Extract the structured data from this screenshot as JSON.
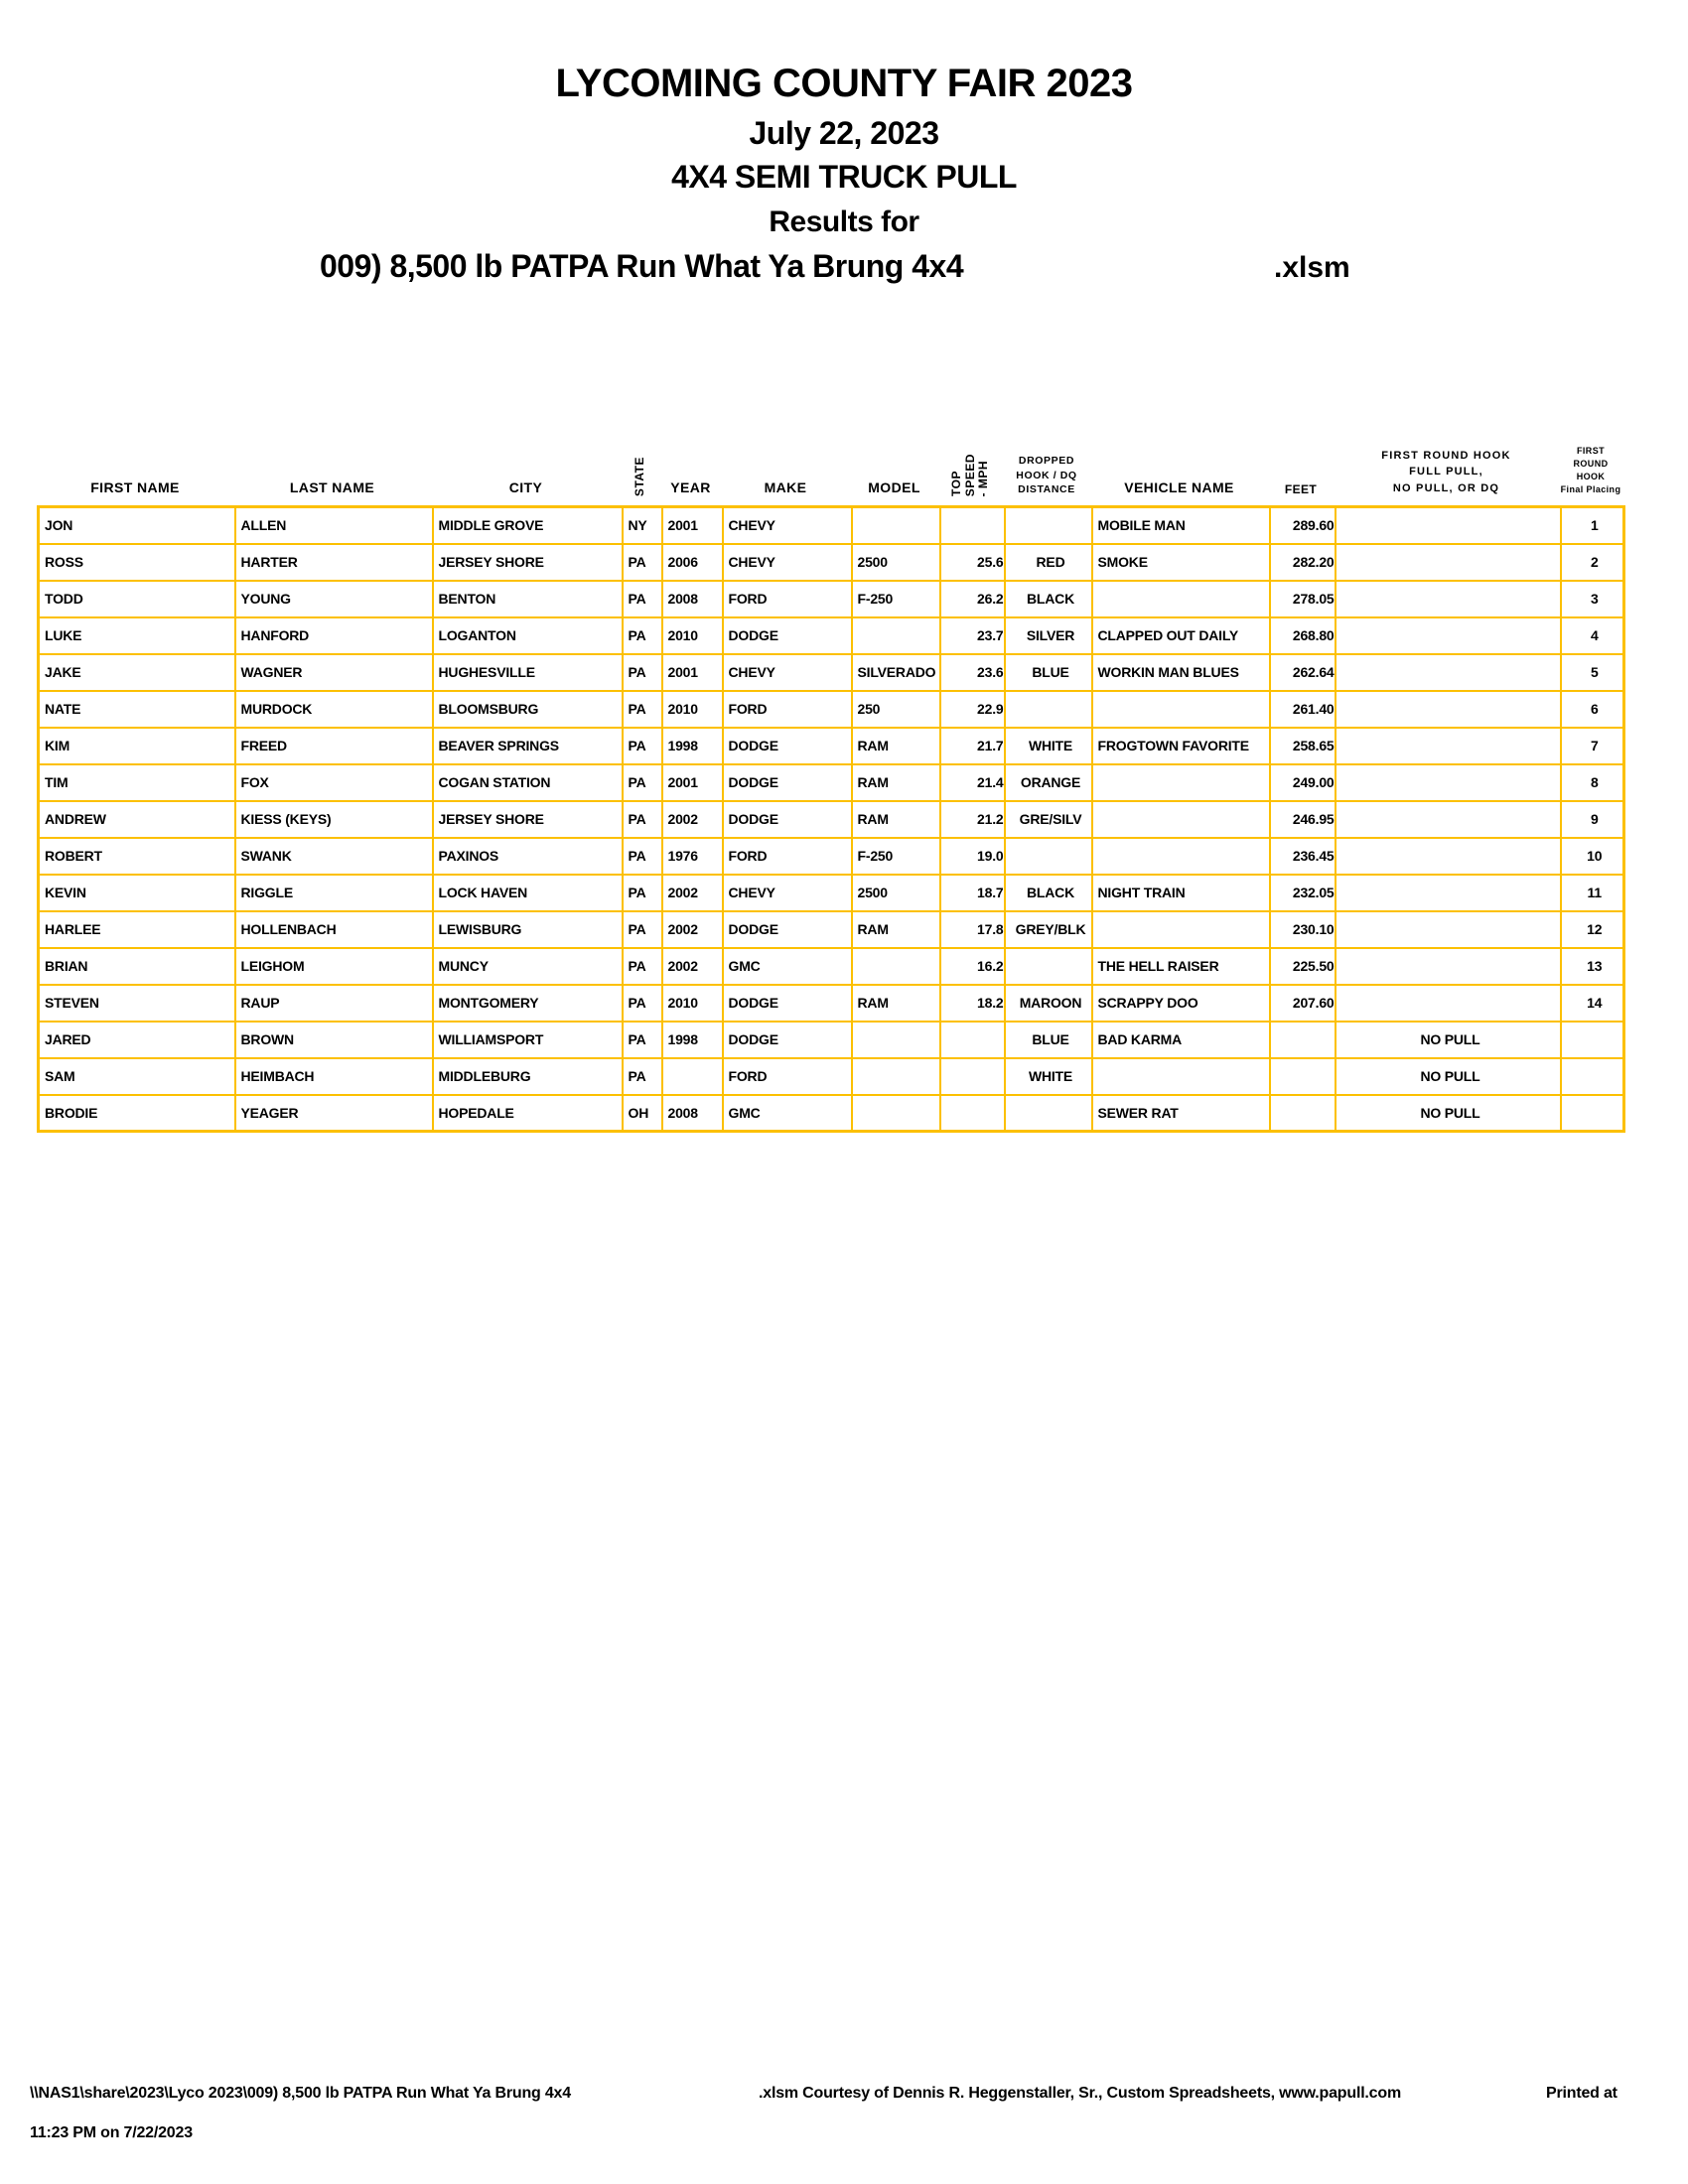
{
  "colors": {
    "grid": "#FCC000"
  },
  "title": {
    "line1": "LYCOMING COUNTY FAIR 2023",
    "line2": "July 22, 2023",
    "line3": "4X4 SEMI TRUCK PULL",
    "line4": "Results for",
    "line5": "009) 8,500 lb PATPA Run What Ya Brung 4x4",
    "line5_suffix": ".xlsm"
  },
  "table": {
    "headers": {
      "first_name": "FIRST NAME",
      "last_name": "LAST NAME",
      "city": "CITY",
      "state": "STATE",
      "year": "YEAR",
      "make": "MAKE",
      "model": "MODEL",
      "top_speed_lines": [
        "TOP",
        "SPEED",
        "- MPH"
      ],
      "dropped_lines": [
        "DROPPED",
        "HOOK / DQ",
        "DISTANCE"
      ],
      "vehicle_name": "VEHICLE NAME",
      "feet": "FEET",
      "first_round_lines": [
        "FIRST ROUND HOOK",
        "FULL PULL,",
        "NO PULL, OR DQ"
      ],
      "placing_lines": [
        "FIRST ROUND",
        "HOOK",
        "Final Placing"
      ]
    },
    "column_keys": [
      "first",
      "last",
      "city",
      "state",
      "year",
      "make",
      "model",
      "speed",
      "hook",
      "vehicle",
      "feet",
      "result",
      "place"
    ],
    "rows": [
      {
        "first": "JON",
        "last": "ALLEN",
        "city": "MIDDLE GROVE",
        "state": "NY",
        "year": "2001",
        "make": "CHEVY",
        "model": "",
        "speed": "",
        "hook": "",
        "vehicle": "MOBILE MAN",
        "feet": "289.60",
        "result": "",
        "place": "1"
      },
      {
        "first": "ROSS",
        "last": "HARTER",
        "city": "JERSEY SHORE",
        "state": "PA",
        "year": "2006",
        "make": "CHEVY",
        "model": "2500",
        "speed": "25.6",
        "hook": "RED",
        "vehicle": "SMOKE",
        "feet": "282.20",
        "result": "",
        "place": "2"
      },
      {
        "first": "TODD",
        "last": "YOUNG",
        "city": "BENTON",
        "state": "PA",
        "year": "2008",
        "make": "FORD",
        "model": "F-250",
        "speed": "26.2",
        "hook": "BLACK",
        "vehicle": "",
        "feet": "278.05",
        "result": "",
        "place": "3"
      },
      {
        "first": "LUKE",
        "last": "HANFORD",
        "city": "LOGANTON",
        "state": "PA",
        "year": "2010",
        "make": "DODGE",
        "model": "",
        "speed": "23.7",
        "hook": "SILVER",
        "vehicle": "CLAPPED OUT DAILY",
        "feet": "268.80",
        "result": "",
        "place": "4"
      },
      {
        "first": "JAKE",
        "last": "WAGNER",
        "city": "HUGHESVILLE",
        "state": "PA",
        "year": "2001",
        "make": "CHEVY",
        "model": "SILVERADO",
        "speed": "23.6",
        "hook": "BLUE",
        "vehicle": "WORKIN MAN BLUES",
        "feet": "262.64",
        "result": "",
        "place": "5"
      },
      {
        "first": "NATE",
        "last": "MURDOCK",
        "city": "BLOOMSBURG",
        "state": "PA",
        "year": "2010",
        "make": "FORD",
        "model": "250",
        "speed": "22.9",
        "hook": "",
        "vehicle": "",
        "feet": "261.40",
        "result": "",
        "place": "6"
      },
      {
        "first": "KIM",
        "last": "FREED",
        "city": "BEAVER SPRINGS",
        "state": "PA",
        "year": "1998",
        "make": "DODGE",
        "model": "RAM",
        "speed": "21.7",
        "hook": "WHITE",
        "vehicle": "FROGTOWN FAVORITE",
        "feet": "258.65",
        "result": "",
        "place": "7"
      },
      {
        "first": "TIM",
        "last": "FOX",
        "city": "COGAN STATION",
        "state": "PA",
        "year": "2001",
        "make": "DODGE",
        "model": "RAM",
        "speed": "21.4",
        "hook": "ORANGE",
        "vehicle": "",
        "feet": "249.00",
        "result": "",
        "place": "8"
      },
      {
        "first": "ANDREW",
        "last": "KIESS (KEYS)",
        "city": "JERSEY SHORE",
        "state": "PA",
        "year": "2002",
        "make": "DODGE",
        "model": "RAM",
        "speed": "21.2",
        "hook": "GRE/SILV",
        "vehicle": "",
        "feet": "246.95",
        "result": "",
        "place": "9"
      },
      {
        "first": "ROBERT",
        "last": "SWANK",
        "city": "PAXINOS",
        "state": "PA",
        "year": "1976",
        "make": "FORD",
        "model": "F-250",
        "speed": "19.0",
        "hook": "",
        "vehicle": "",
        "feet": "236.45",
        "result": "",
        "place": "10"
      },
      {
        "first": "KEVIN",
        "last": "RIGGLE",
        "city": "LOCK HAVEN",
        "state": "PA",
        "year": "2002",
        "make": "CHEVY",
        "model": "2500",
        "speed": "18.7",
        "hook": "BLACK",
        "vehicle": "NIGHT TRAIN",
        "feet": "232.05",
        "result": "",
        "place": "11"
      },
      {
        "first": "HARLEE",
        "last": "HOLLENBACH",
        "city": "LEWISBURG",
        "state": "PA",
        "year": "2002",
        "make": "DODGE",
        "model": "RAM",
        "speed": "17.8",
        "hook": "GREY/BLK",
        "vehicle": "",
        "feet": "230.10",
        "result": "",
        "place": "12"
      },
      {
        "first": "BRIAN",
        "last": "LEIGHOM",
        "city": "MUNCY",
        "state": "PA",
        "year": "2002",
        "make": "GMC",
        "model": "",
        "speed": "16.2",
        "hook": "",
        "vehicle": "THE HELL RAISER",
        "feet": "225.50",
        "result": "",
        "place": "13"
      },
      {
        "first": "STEVEN",
        "last": "RAUP",
        "city": "MONTGOMERY",
        "state": "PA",
        "year": "2010",
        "make": "DODGE",
        "model": "RAM",
        "speed": "18.2",
        "hook": "MAROON",
        "vehicle": "SCRAPPY DOO",
        "feet": "207.60",
        "result": "",
        "place": "14"
      },
      {
        "first": "JARED",
        "last": "BROWN",
        "city": "WILLIAMSPORT",
        "state": "PA",
        "year": "1998",
        "make": "DODGE",
        "model": "",
        "speed": "",
        "hook": "BLUE",
        "vehicle": "BAD KARMA",
        "feet": "",
        "result": "NO PULL",
        "place": ""
      },
      {
        "first": "SAM",
        "last": "HEIMBACH",
        "city": "MIDDLEBURG",
        "state": "PA",
        "year": "",
        "make": "FORD",
        "model": "",
        "speed": "",
        "hook": "WHITE",
        "vehicle": "",
        "feet": "",
        "result": "NO PULL",
        "place": ""
      },
      {
        "first": "BRODIE",
        "last": "YEAGER",
        "city": "HOPEDALE",
        "state": "OH",
        "year": "2008",
        "make": "GMC",
        "model": "",
        "speed": "",
        "hook": "",
        "vehicle": "SEWER RAT",
        "feet": "",
        "result": "NO PULL",
        "place": ""
      }
    ]
  },
  "footer": {
    "path": "\\\\NAS1\\share\\2023\\Lyco 2023\\009) 8,500 lb PATPA Run What Ya Brung 4x4",
    "credit": ".xlsm  Courtesy of Dennis R. Heggenstaller, Sr., Custom Spreadsheets, www.papull.com",
    "printed_at_label": "Printed at",
    "printed_time": "11:23 PM on 7/22/2023"
  }
}
